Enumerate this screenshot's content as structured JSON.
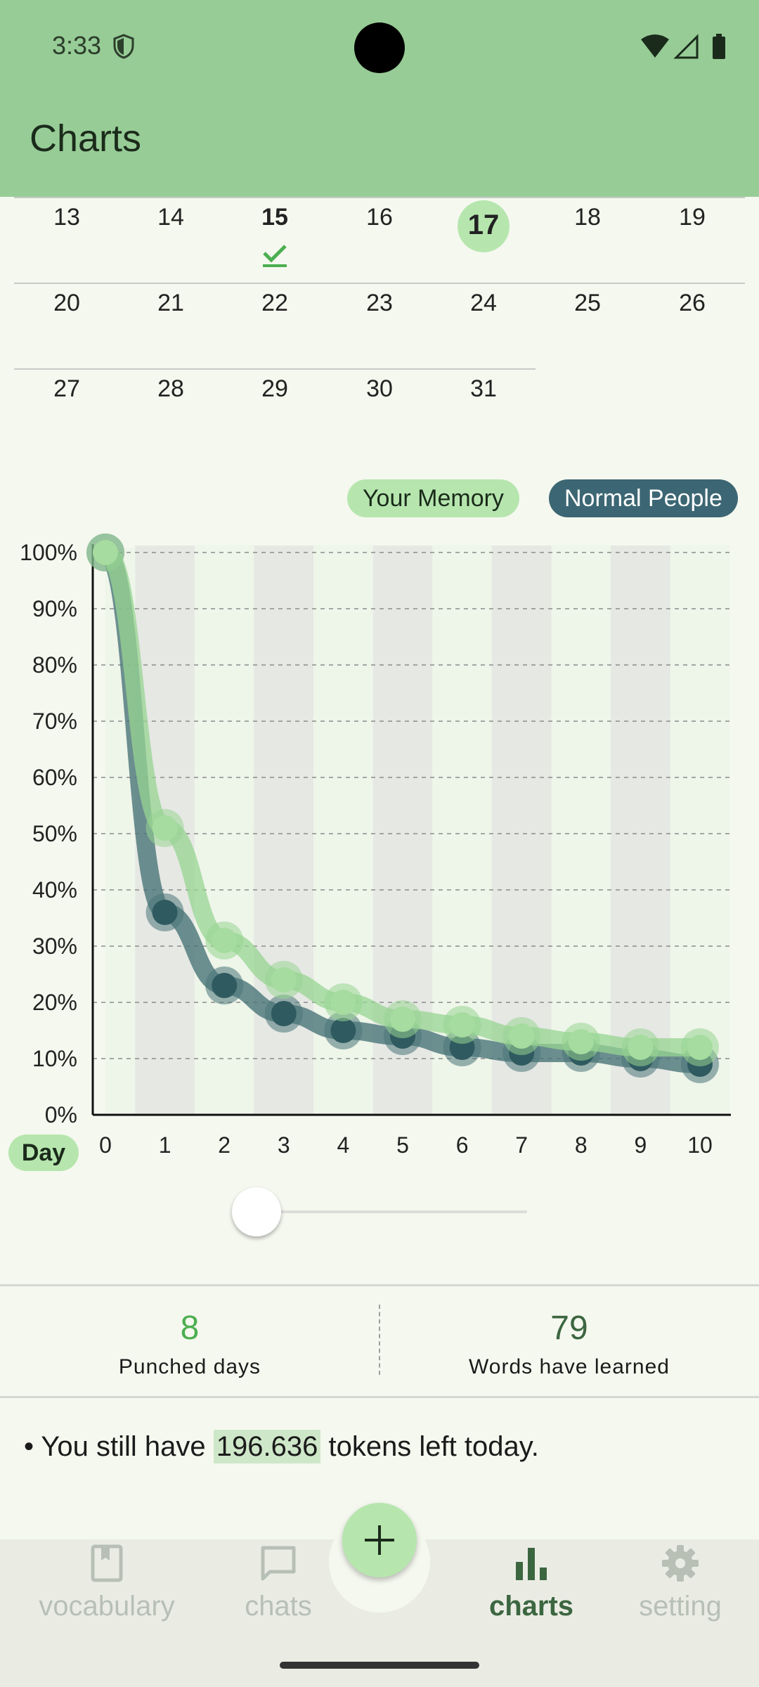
{
  "status": {
    "time": "3:33"
  },
  "title": "Charts",
  "calendar": {
    "rows": [
      [
        "13",
        "14",
        "15",
        "16",
        "17",
        "18",
        "19"
      ],
      [
        "20",
        "21",
        "22",
        "23",
        "24",
        "25",
        "26"
      ],
      [
        "27",
        "28",
        "29",
        "30",
        "31"
      ]
    ],
    "today": "17",
    "checked_day": "15"
  },
  "legend": {
    "memory": "Your Memory",
    "normal": "Normal People"
  },
  "chart_data": {
    "type": "line",
    "x": [
      0,
      1,
      2,
      3,
      4,
      5,
      6,
      7,
      8,
      9,
      10
    ],
    "xlabel": "Day",
    "ylim": [
      0,
      100
    ],
    "yticks": [
      "0%",
      "10%",
      "20%",
      "30%",
      "40%",
      "50%",
      "60%",
      "70%",
      "80%",
      "90%",
      "100%"
    ],
    "series": [
      {
        "name": "Your Memory",
        "values": [
          100,
          51,
          31,
          24,
          20,
          17,
          16,
          14,
          13,
          12,
          12
        ],
        "color": "#97d491"
      },
      {
        "name": "Normal People",
        "values": [
          100,
          36,
          23,
          18,
          15,
          14,
          12,
          11,
          11,
          10,
          9
        ],
        "color": "#4a7478"
      }
    ],
    "grid": true
  },
  "stats": [
    {
      "value": "8",
      "label": "Punched days"
    },
    {
      "value": "79",
      "label": "Words have learned"
    }
  ],
  "tokens": {
    "prefix": "• You still have ",
    "value": "196.636",
    "suffix": " tokens left today."
  },
  "nav": {
    "vocabulary": "vocabulary",
    "chats": "chats",
    "charts": "charts",
    "setting": "setting"
  }
}
